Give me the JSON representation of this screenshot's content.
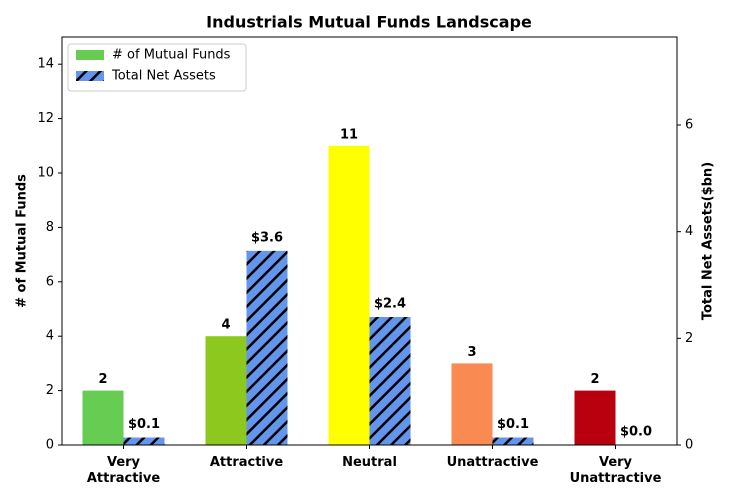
{
  "chart_data": {
    "type": "bar",
    "title": "Industrials Mutual Funds Landscape",
    "categories": [
      "Very\nAttractive",
      "Attractive",
      "Neutral",
      "Unattractive",
      "Very\nUnattractive"
    ],
    "ylabel": "# of Mutual Funds",
    "y2label": "Total Net Assets($bn)",
    "series": [
      {
        "name": "# of Mutual Funds",
        "colors": [
          "#66cc52",
          "#8cc81e",
          "#ffff00",
          "#f98a52",
          "#b8000e"
        ],
        "values": [
          2,
          4,
          11,
          3,
          2
        ]
      },
      {
        "name": "Total Net Assets",
        "color": "#6495ed",
        "hatch": true,
        "axis": "y2",
        "values": [
          0.14,
          3.64,
          2.4,
          0.14,
          0
        ],
        "value_labels": [
          "$0.1",
          "$3.6",
          "$2.4",
          "$0.1",
          "$0.0"
        ]
      }
    ],
    "ylim": [
      0,
      15
    ],
    "yticks": [
      0,
      2,
      4,
      6,
      8,
      10,
      12,
      14
    ],
    "y2lim": [
      0,
      7.65
    ],
    "y2ticks": [
      0,
      2,
      4,
      6
    ],
    "legend": "upper left"
  }
}
